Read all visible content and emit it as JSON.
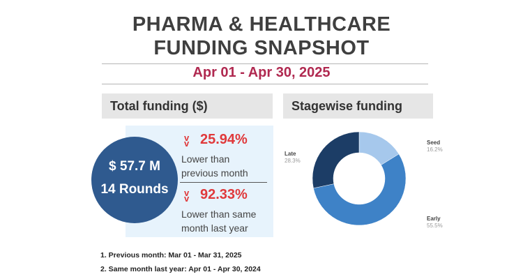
{
  "header": {
    "title_line1": "PHARMA & HEALTHCARE",
    "title_line2": "FUNDING SNAPSHOT",
    "date_range": "Apr 01 - Apr 30, 2025"
  },
  "total_funding": {
    "section_title": "Total funding ($)",
    "amount": "$ 57.7 M",
    "rounds": "14 Rounds",
    "comparisons": [
      {
        "percent": "25.94%",
        "desc_line1": "Lower than",
        "desc_line2": "previous month"
      },
      {
        "percent": "92.33%",
        "desc_line1": "Lower than same",
        "desc_line2": "month last year"
      }
    ]
  },
  "stagewise": {
    "section_title": "Stagewise funding"
  },
  "footnotes": [
    "1. Previous month: Mar 01 - Mar 31, 2025",
    "2. Same month last year: Apr 01 - Apr 30, 2024"
  ],
  "chart_data": {
    "type": "pie",
    "donut": true,
    "title": "Stagewise funding",
    "slices": [
      {
        "label": "Seed",
        "value": 16.2,
        "display": "16.2%",
        "color": "#a6c8ec"
      },
      {
        "label": "Early",
        "value": 55.5,
        "display": "55.5%",
        "color": "#3e82c7"
      },
      {
        "label": "Late",
        "value": 28.3,
        "display": "28.3%",
        "color": "#1c3d66"
      }
    ]
  }
}
